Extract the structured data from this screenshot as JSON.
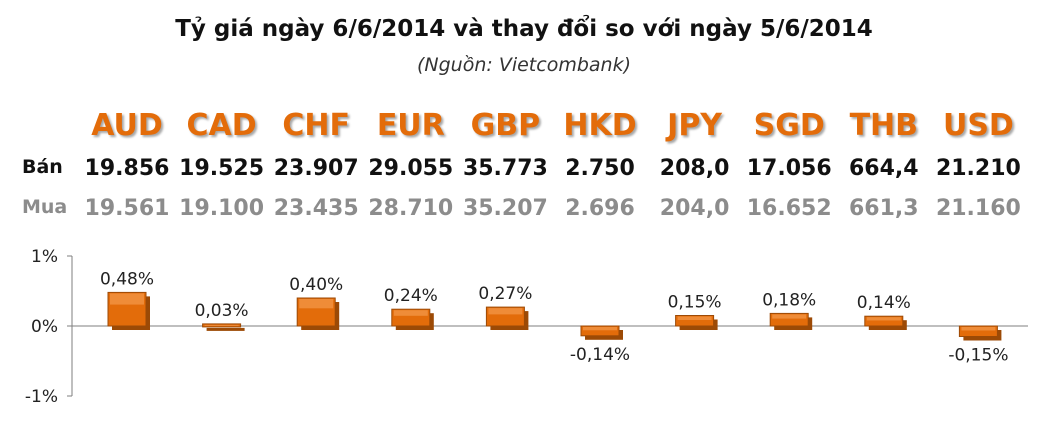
{
  "title": "Tỷ giá ngày 6/6/2014 và thay đổi so với ngày 5/6/2014",
  "subtitle": "(Nguồn: Vietcombank)",
  "row_labels": {
    "sell": "Bán",
    "buy": "Mua"
  },
  "colors": {
    "accent": "#e36c0a",
    "bar": "#e36c0a",
    "bar_dark": "#9c4a06",
    "buy_text": "#8c8c8c"
  },
  "chart_data": {
    "type": "bar",
    "categories": [
      "AUD",
      "CAD",
      "CHF",
      "EUR",
      "GBP",
      "HKD",
      "JPY",
      "SGD",
      "THB",
      "USD"
    ],
    "values": [
      0.48,
      0.03,
      0.4,
      0.24,
      0.27,
      -0.14,
      0.15,
      0.18,
      0.14,
      -0.15
    ],
    "data_labels": [
      "0,48%",
      "0,03%",
      "0,40%",
      "0,24%",
      "0,27%",
      "-0,14%",
      "0,15%",
      "0,18%",
      "0,14%",
      "-0,15%"
    ],
    "sell": [
      "19.856",
      "19.525",
      "23.907",
      "29.055",
      "35.773",
      "2.750",
      "208,0",
      "17.056",
      "664,4",
      "21.210"
    ],
    "buy": [
      "19.561",
      "19.100",
      "23.435",
      "28.710",
      "35.207",
      "2.696",
      "204,0",
      "16.652",
      "661,3",
      "21.160"
    ],
    "ylim": [
      -1,
      1
    ],
    "yticks": [
      1,
      0,
      -1
    ],
    "ytick_labels": [
      "1%",
      "0%",
      "-1%"
    ],
    "grid": false,
    "legend": "none"
  }
}
